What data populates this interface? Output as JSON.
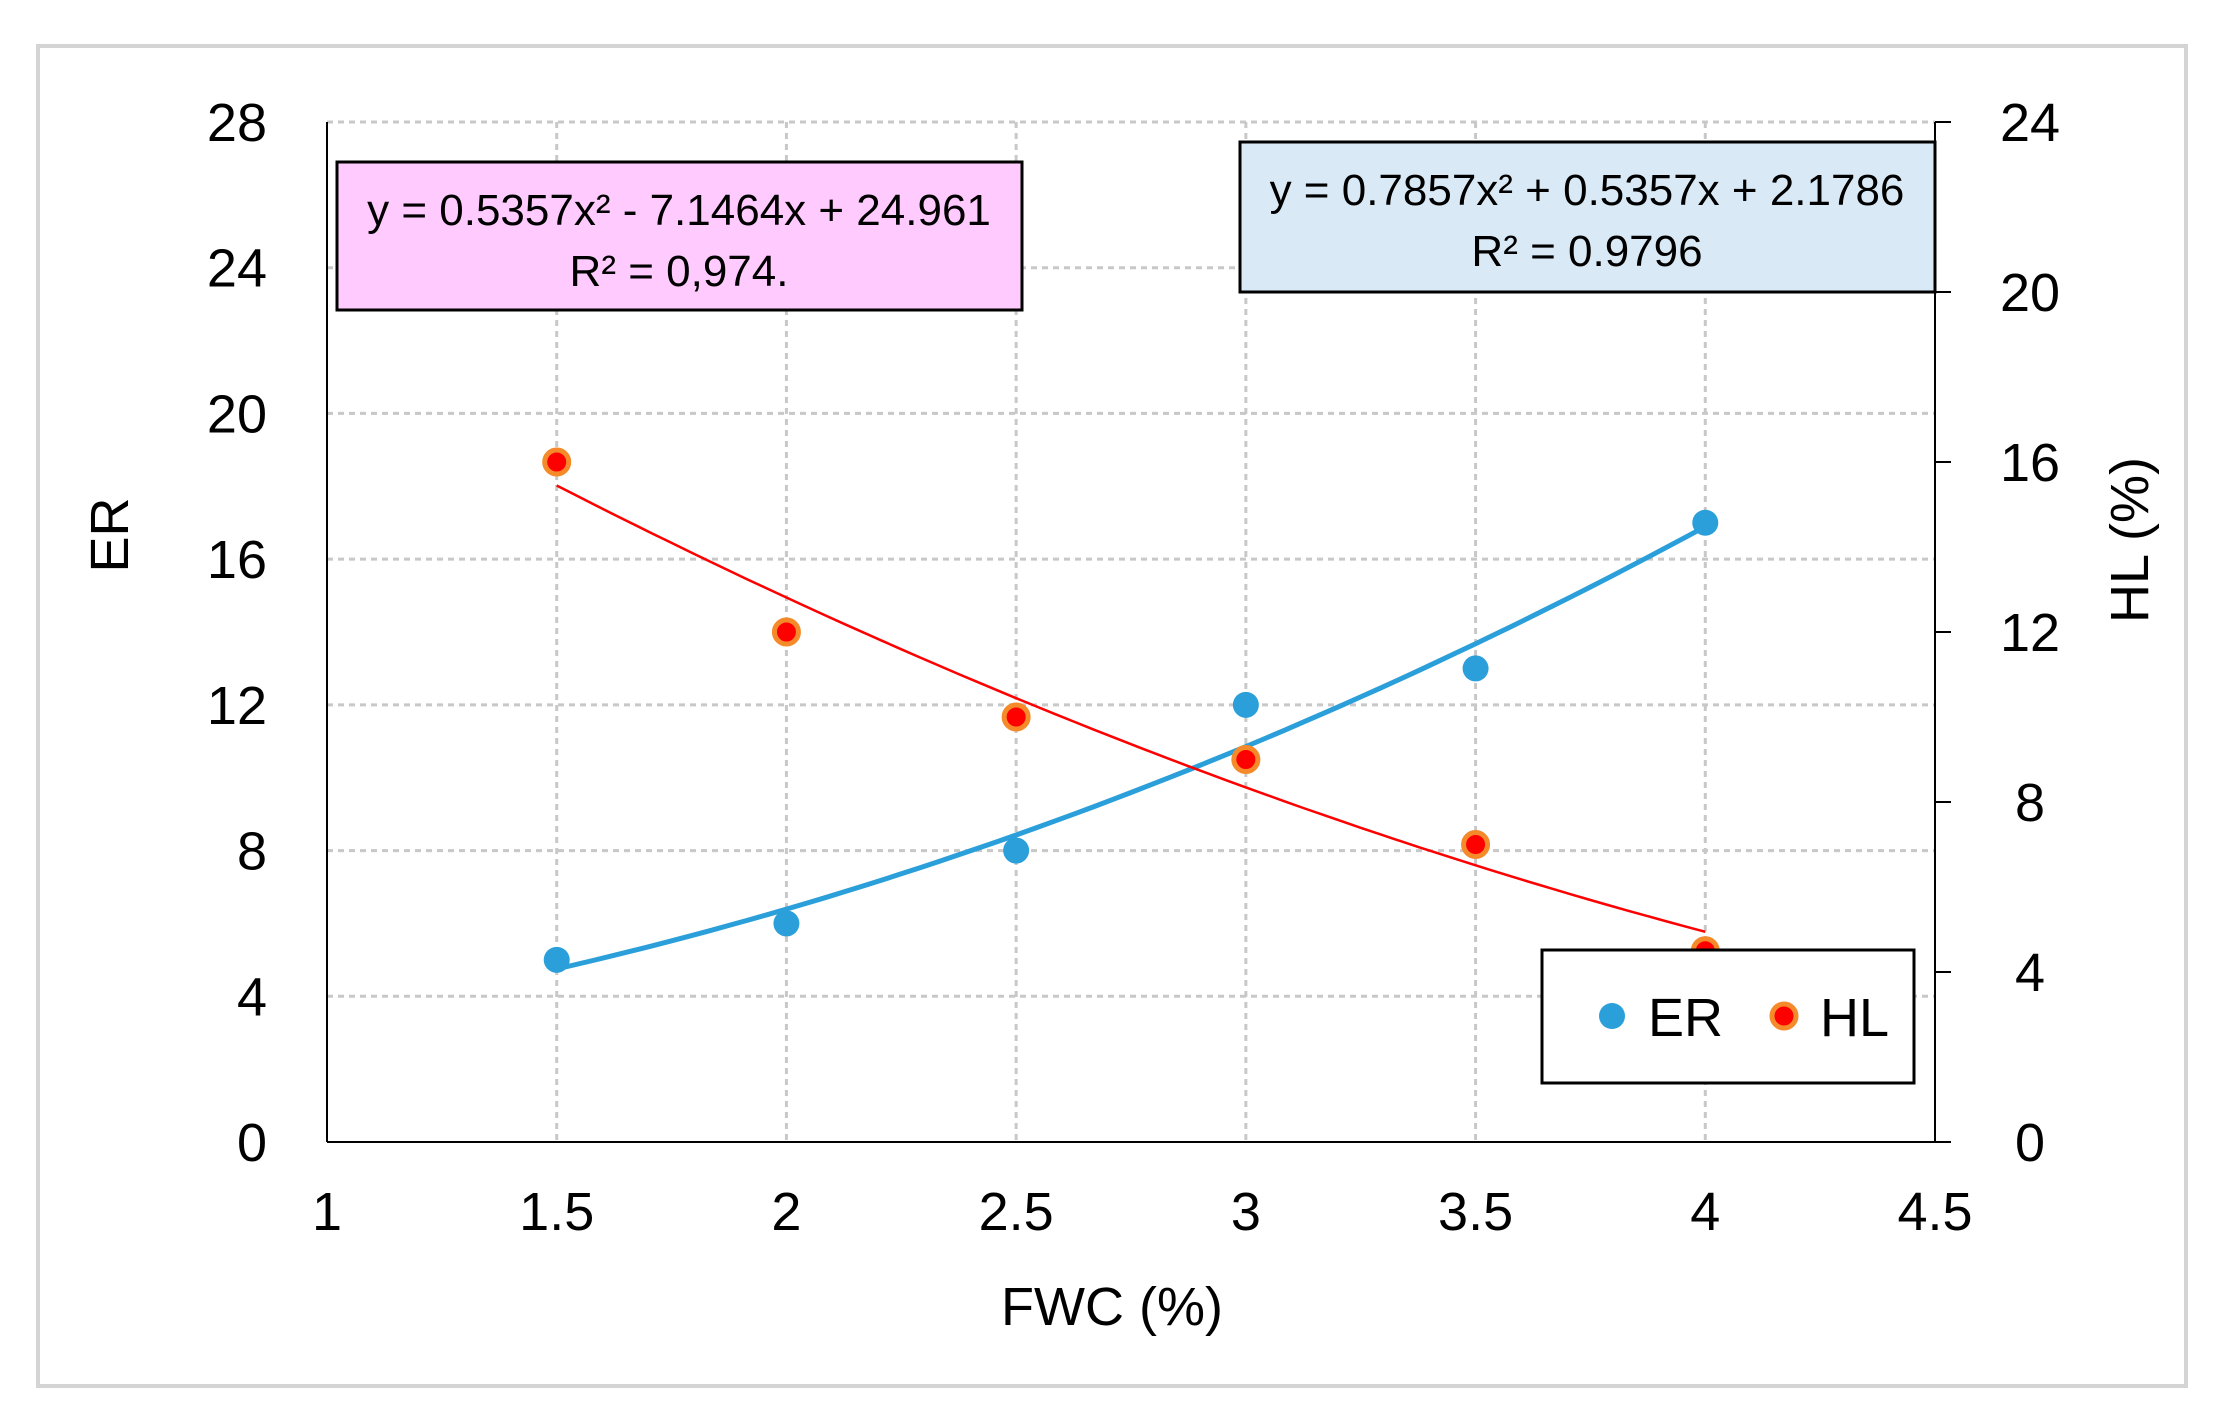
{
  "chart_data": {
    "type": "scatter",
    "title": "",
    "xlabel": "FWC (%)",
    "ylabel": "ER",
    "y2label": "HL (%)",
    "xlim": [
      1,
      4.5
    ],
    "ylim": [
      0,
      28
    ],
    "y2lim": [
      0,
      24
    ],
    "x_ticks": [
      "1",
      "1.5",
      "2",
      "2.5",
      "3",
      "3.5",
      "4",
      "4.5"
    ],
    "x_tick_values": [
      1,
      1.5,
      2,
      2.5,
      3,
      3.5,
      4,
      4.5
    ],
    "y_ticks": [
      "0",
      "4",
      "8",
      "12",
      "16",
      "20",
      "24",
      "28"
    ],
    "y_tick_values": [
      0,
      4,
      8,
      12,
      16,
      20,
      24,
      28
    ],
    "y2_ticks": [
      "0",
      "4",
      "8",
      "12",
      "16",
      "20",
      "24"
    ],
    "y2_tick_values": [
      0,
      4,
      8,
      12,
      16,
      20,
      24
    ],
    "grid": true,
    "legend_position": "bottom-right",
    "series": [
      {
        "name": "ER",
        "axis": "left",
        "color": "#2b9fd9",
        "x": [
          1.5,
          2,
          2.5,
          3,
          3.5,
          4
        ],
        "values": [
          5,
          6,
          8,
          12,
          13,
          17
        ],
        "trend": {
          "type": "polynomial",
          "coefficients": [
            0.7857,
            0.5357,
            2.1786
          ],
          "equation": "y = 0.7857x² + 0.5357x + 2.1786",
          "r2_label": "R² = 0.9796",
          "box_color": "#d9eaf6"
        }
      },
      {
        "name": "HL",
        "axis": "right",
        "color": "#ff0000",
        "edge_color": "#f58a2a",
        "x": [
          1.5,
          2,
          2.5,
          3,
          3.5,
          4
        ],
        "values": [
          16,
          12,
          10,
          9,
          7,
          4.5
        ],
        "trend": {
          "type": "polynomial",
          "coefficients": [
            0.5357,
            -7.1464,
            24.961
          ],
          "equation": "y = 0.5357x² - 7.1464x + 24.961",
          "r2_label": "R² = 0,974.",
          "box_color": "#ffcafd"
        }
      }
    ]
  }
}
